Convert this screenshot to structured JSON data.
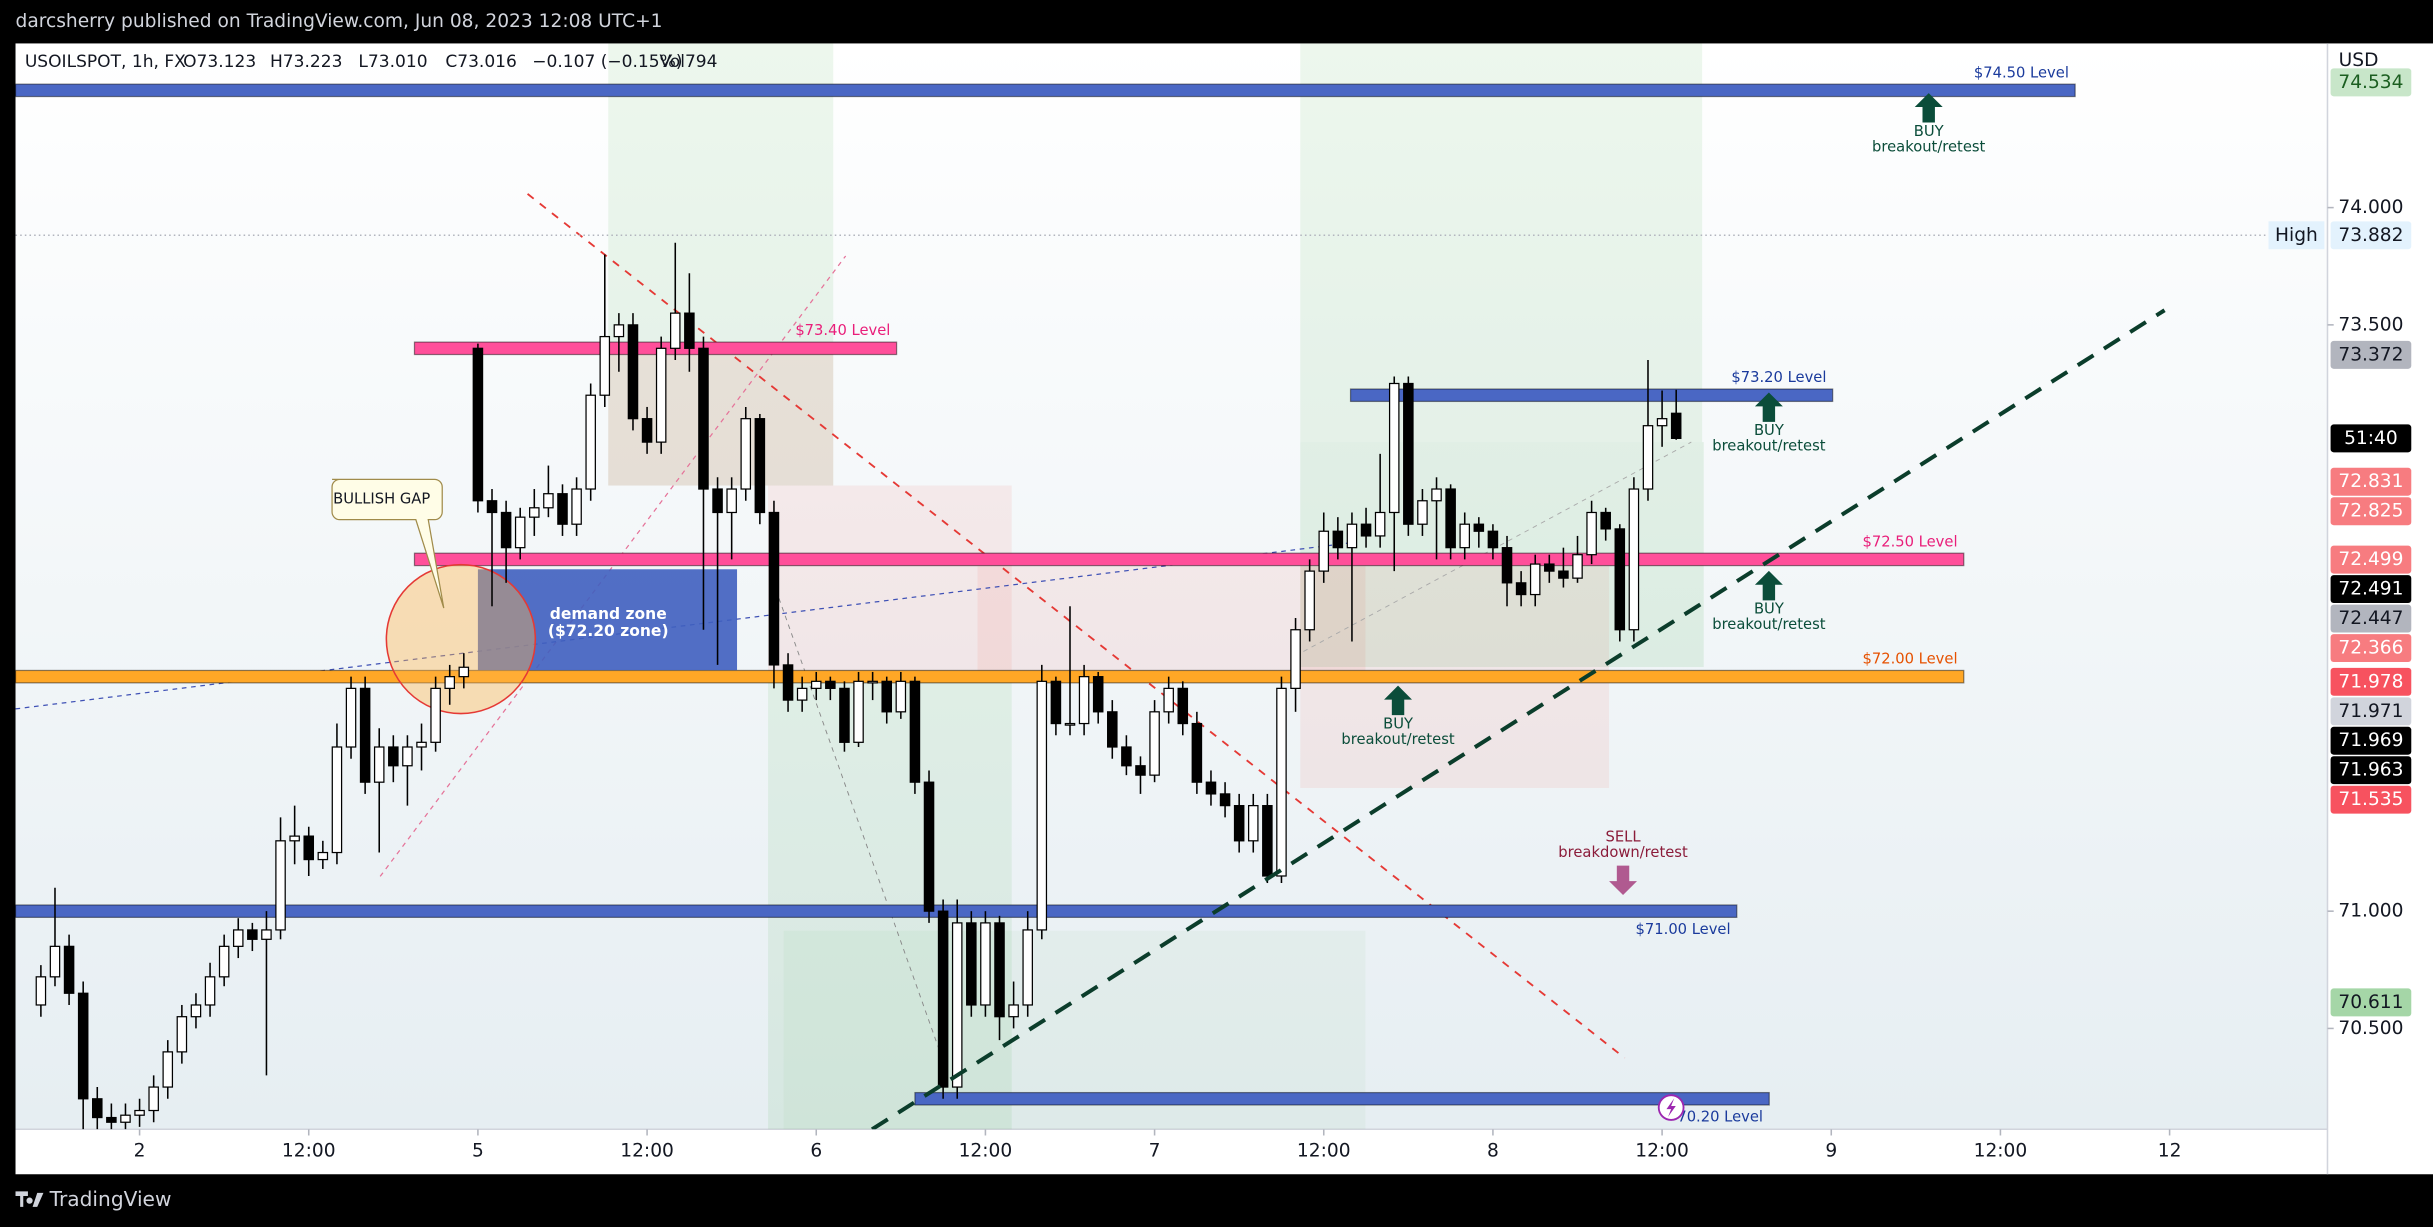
{
  "chart_data": {
    "type": "candlestick",
    "publisher": "darcsherry published on TradingView.com, Jun 08, 2023 12:08 UTC+1",
    "legend": [
      "USOILSPOT, 1h, FX",
      "O73.123",
      "H73.223",
      "L73.010",
      "C73.016",
      "−0.107 (−0.15%)",
      "Vol794"
    ],
    "currency": "USD",
    "brand": "TradingView",
    "countdown": "51:40",
    "up_color": "#ffffff",
    "down_color": "#000000",
    "grid": false,
    "xlim": [
      -8.8,
      155.2
    ],
    "ylim": [
      70.07,
      74.7
    ],
    "xticks": [
      {
        "value": 0,
        "label": "2"
      },
      {
        "value": 12,
        "label": "12:00"
      },
      {
        "value": 24,
        "label": "5"
      },
      {
        "value": 36,
        "label": "12:00"
      },
      {
        "value": 48,
        "label": "6"
      },
      {
        "value": 60,
        "label": "12:00"
      },
      {
        "value": 72,
        "label": "7"
      },
      {
        "value": 84,
        "label": "12:00"
      },
      {
        "value": 96,
        "label": "8"
      },
      {
        "value": 108,
        "label": "12:00"
      },
      {
        "value": 120,
        "label": "9"
      },
      {
        "value": 132,
        "label": "12:00"
      },
      {
        "value": 144,
        "label": "12"
      }
    ],
    "yticks": [
      {
        "value": 74,
        "label": "74.000"
      },
      {
        "value": 73.5,
        "label": "73.500"
      },
      {
        "value": 71,
        "label": "71.000"
      },
      {
        "value": 70.5,
        "label": "70.500"
      }
    ],
    "x": [
      -7,
      -6,
      -5,
      -4,
      -3,
      -2,
      -1,
      0,
      1,
      2,
      3,
      4,
      5,
      6,
      7,
      8,
      9,
      10,
      11,
      12,
      13,
      14,
      15,
      16,
      17,
      18,
      19,
      20,
      21,
      22,
      23,
      24,
      25,
      26,
      27,
      28,
      29,
      30,
      31,
      32,
      33,
      34,
      35,
      36,
      37,
      38,
      39,
      40,
      41,
      42,
      43,
      44,
      45,
      46,
      47,
      48,
      49,
      50,
      51,
      52,
      53,
      54,
      55,
      56,
      57,
      58,
      59,
      60,
      61,
      62,
      63,
      64,
      65,
      66,
      67,
      68,
      69,
      70,
      71,
      72,
      73,
      74,
      75,
      76,
      77,
      78,
      79,
      80,
      81,
      82,
      83,
      84,
      85,
      86,
      87,
      88,
      89,
      90,
      91,
      92,
      93,
      94,
      95,
      96,
      97,
      98,
      99,
      100,
      101,
      102,
      103,
      104,
      105,
      106,
      107,
      108,
      109
    ],
    "ohlc": [
      [
        70.6,
        70.77,
        70.55,
        70.72
      ],
      [
        70.72,
        71.1,
        70.68,
        70.85
      ],
      [
        70.85,
        70.9,
        70.6,
        70.65
      ],
      [
        70.65,
        70.7,
        70.07,
        70.2
      ],
      [
        70.2,
        70.25,
        70.07,
        70.12
      ],
      [
        70.12,
        70.18,
        70.07,
        70.1
      ],
      [
        70.1,
        70.18,
        70.07,
        70.13
      ],
      [
        70.13,
        70.2,
        70.08,
        70.15
      ],
      [
        70.15,
        70.3,
        70.1,
        70.25
      ],
      [
        70.25,
        70.45,
        70.2,
        70.4
      ],
      [
        70.4,
        70.6,
        70.35,
        70.55
      ],
      [
        70.55,
        70.65,
        70.5,
        70.6
      ],
      [
        70.6,
        70.78,
        70.55,
        70.72
      ],
      [
        70.72,
        70.9,
        70.68,
        70.85
      ],
      [
        70.85,
        70.97,
        70.8,
        70.92
      ],
      [
        70.92,
        70.95,
        70.83,
        70.88
      ],
      [
        70.88,
        71.0,
        70.3,
        70.92
      ],
      [
        70.92,
        71.4,
        70.88,
        71.3
      ],
      [
        71.3,
        71.45,
        71.2,
        71.32
      ],
      [
        71.32,
        71.36,
        71.15,
        71.22
      ],
      [
        71.22,
        71.3,
        71.18,
        71.25
      ],
      [
        71.25,
        71.8,
        71.2,
        71.7
      ],
      [
        71.7,
        72.0,
        71.65,
        71.95
      ],
      [
        71.95,
        72.0,
        71.5,
        71.55
      ],
      [
        71.55,
        71.78,
        71.25,
        71.7
      ],
      [
        71.7,
        71.75,
        71.55,
        71.62
      ],
      [
        71.62,
        71.75,
        71.45,
        71.7
      ],
      [
        71.7,
        71.8,
        71.6,
        71.72
      ],
      [
        71.72,
        72.0,
        71.68,
        71.95
      ],
      [
        71.95,
        72.05,
        71.88,
        72.0
      ],
      [
        72.0,
        72.1,
        71.95,
        72.04
      ],
      [
        73.4,
        73.42,
        72.7,
        72.75
      ],
      [
        72.75,
        72.8,
        72.3,
        72.7
      ],
      [
        72.7,
        72.75,
        72.4,
        72.55
      ],
      [
        72.55,
        72.72,
        72.5,
        72.68
      ],
      [
        72.68,
        72.8,
        72.6,
        72.72
      ],
      [
        72.72,
        72.9,
        72.68,
        72.78
      ],
      [
        72.78,
        72.82,
        72.6,
        72.65
      ],
      [
        72.65,
        72.85,
        72.6,
        72.8
      ],
      [
        72.8,
        73.25,
        72.75,
        73.2
      ],
      [
        73.2,
        73.8,
        73.15,
        73.45
      ],
      [
        73.45,
        73.55,
        73.3,
        73.5
      ],
      [
        73.5,
        73.55,
        73.05,
        73.1
      ],
      [
        73.1,
        73.15,
        72.95,
        73.0
      ],
      [
        73.0,
        73.45,
        72.95,
        73.4
      ],
      [
        73.4,
        73.85,
        73.35,
        73.55
      ],
      [
        73.55,
        73.72,
        73.3,
        73.4
      ],
      [
        73.4,
        73.45,
        72.2,
        72.8
      ],
      [
        72.8,
        72.85,
        72.05,
        72.7
      ],
      [
        72.7,
        72.85,
        72.5,
        72.8
      ],
      [
        72.8,
        73.15,
        72.75,
        73.1
      ],
      [
        73.1,
        73.12,
        72.65,
        72.7
      ],
      [
        72.7,
        72.75,
        71.95,
        72.05
      ],
      [
        72.05,
        72.1,
        71.85,
        71.9
      ],
      [
        71.9,
        72.0,
        71.85,
        71.95
      ],
      [
        71.95,
        72.02,
        71.9,
        71.98
      ],
      [
        71.98,
        72.0,
        71.9,
        71.95
      ],
      [
        71.95,
        71.98,
        71.68,
        71.72
      ],
      [
        71.72,
        72.02,
        71.7,
        71.98
      ],
      [
        71.98,
        72.02,
        71.9,
        71.98
      ],
      [
        71.98,
        72.0,
        71.8,
        71.85
      ],
      [
        71.85,
        72.02,
        71.82,
        71.98
      ],
      [
        71.98,
        72.0,
        71.5,
        71.55
      ],
      [
        71.55,
        71.6,
        70.95,
        71.0
      ],
      [
        71.0,
        71.05,
        70.2,
        70.25
      ],
      [
        70.25,
        71.05,
        70.2,
        70.95
      ],
      [
        70.95,
        71.0,
        70.55,
        70.6
      ],
      [
        70.6,
        71.0,
        70.55,
        70.95
      ],
      [
        70.95,
        70.98,
        70.45,
        70.55
      ],
      [
        70.55,
        70.7,
        70.5,
        70.6
      ],
      [
        70.6,
        71.0,
        70.55,
        70.92
      ],
      [
        70.92,
        72.05,
        70.88,
        71.98
      ],
      [
        71.98,
        72.0,
        71.75,
        71.8
      ],
      [
        71.8,
        72.3,
        71.75,
        71.8
      ],
      [
        71.8,
        72.05,
        71.75,
        72.0
      ],
      [
        72.0,
        72.02,
        71.8,
        71.85
      ],
      [
        71.85,
        71.9,
        71.65,
        71.7
      ],
      [
        71.7,
        71.75,
        71.58,
        71.62
      ],
      [
        71.62,
        71.66,
        71.5,
        71.58
      ],
      [
        71.58,
        71.9,
        71.55,
        71.85
      ],
      [
        71.85,
        72.0,
        71.8,
        71.95
      ],
      [
        71.95,
        71.98,
        71.75,
        71.8
      ],
      [
        71.8,
        71.85,
        71.5,
        71.55
      ],
      [
        71.55,
        71.6,
        71.45,
        71.5
      ],
      [
        71.5,
        71.55,
        71.4,
        71.45
      ],
      [
        71.45,
        71.5,
        71.25,
        71.3
      ],
      [
        71.3,
        71.5,
        71.25,
        71.45
      ],
      [
        71.45,
        71.5,
        71.12,
        71.15
      ],
      [
        71.15,
        72.0,
        71.12,
        71.95
      ],
      [
        71.95,
        72.25,
        71.85,
        72.2
      ],
      [
        72.2,
        72.5,
        72.15,
        72.45
      ],
      [
        72.45,
        72.7,
        72.4,
        72.62
      ],
      [
        72.62,
        72.68,
        72.5,
        72.55
      ],
      [
        72.55,
        72.7,
        72.15,
        72.65
      ],
      [
        72.65,
        72.72,
        72.55,
        72.6
      ],
      [
        72.6,
        72.95,
        72.55,
        72.7
      ],
      [
        72.7,
        73.28,
        72.45,
        73.25
      ],
      [
        73.25,
        73.28,
        72.6,
        72.65
      ],
      [
        72.65,
        72.8,
        72.6,
        72.75
      ],
      [
        72.75,
        72.85,
        72.5,
        72.8
      ],
      [
        72.8,
        72.82,
        72.5,
        72.55
      ],
      [
        72.55,
        72.7,
        72.5,
        72.65
      ],
      [
        72.65,
        72.68,
        72.55,
        72.62
      ],
      [
        72.62,
        72.65,
        72.5,
        72.55
      ],
      [
        72.55,
        72.6,
        72.3,
        72.4
      ],
      [
        72.4,
        72.45,
        72.3,
        72.35
      ],
      [
        72.35,
        72.52,
        72.3,
        72.48
      ],
      [
        72.48,
        72.52,
        72.4,
        72.45
      ],
      [
        72.45,
        72.55,
        72.38,
        72.42
      ],
      [
        72.42,
        72.6,
        72.4,
        72.52
      ],
      [
        72.52,
        72.75,
        72.48,
        72.7
      ],
      [
        72.7,
        72.72,
        72.58,
        72.63
      ],
      [
        72.63,
        72.65,
        72.15,
        72.2
      ],
      [
        72.2,
        72.85,
        72.15,
        72.8
      ],
      [
        72.8,
        73.35,
        72.75,
        73.07
      ],
      [
        73.07,
        73.22,
        72.98,
        73.1
      ],
      [
        73.123,
        73.223,
        73.01,
        73.016
      ]
    ],
    "levels": [
      {
        "label": "$74.50 Level",
        "price": 74.5,
        "start": -8.8,
        "end": 137.3,
        "color": "#4a67c4",
        "label_side": "above"
      },
      {
        "label": "$73.40 Level",
        "price": 73.4,
        "start": 19.5,
        "end": 53.7,
        "color": "#ff4f9a",
        "label_side": "above"
      },
      {
        "label": "$73.20 Level",
        "price": 73.2,
        "start": 85.9,
        "end": 120.1,
        "color": "#4a67c4",
        "label_side": "above"
      },
      {
        "label": "$72.50 Level",
        "price": 72.5,
        "start": 19.5,
        "end": 129.4,
        "color": "#ff4f9a",
        "label_side": "above"
      },
      {
        "label": "$72.00 Level",
        "price": 72.0,
        "start": -8.8,
        "end": 129.4,
        "color": "#ffa726",
        "label_side": "above"
      },
      {
        "label": "$71.00 Level",
        "price": 71.0,
        "start": -8.8,
        "end": 113.3,
        "color": "#4a67c4",
        "label_side": "below"
      },
      {
        "label": "70.20 Level",
        "price": 70.2,
        "start": 55.0,
        "end": 115.6,
        "color": "#4a67c4",
        "label_side": "below"
      }
    ],
    "annotations": [
      {
        "label": "BUY",
        "note": "breakout/retest",
        "direction": "up",
        "color": "#0b4d3a"
      },
      {
        "label": "BUY",
        "note": "breakout/retest",
        "direction": "up",
        "color": "#0b4d3a"
      },
      {
        "label": "BUY",
        "note": "breakout/retest",
        "direction": "up",
        "color": "#0b4d3a"
      },
      {
        "label": "BUY",
        "note": "breakout/retest",
        "direction": "up",
        "color": "#0b4d3a"
      },
      {
        "label": "SELL",
        "note": "breakdown/retest",
        "direction": "down",
        "color": "#8b1c3a"
      }
    ],
    "callout": "BULLISH GAP",
    "zone": {
      "title": "demand zone",
      "subtitle": "($72.20 zone)"
    },
    "price_tags": [
      {
        "value": 74.534,
        "bg": "#c8e6c9",
        "fg": "#1b5e20"
      },
      {
        "value": 73.882,
        "bg": "#e3f2fd",
        "fg": "#131722",
        "name": "High"
      },
      {
        "value": 73.372,
        "bg": "#b2b5be",
        "fg": "#131722"
      },
      {
        "value": 72.831,
        "bg": "#f77c80",
        "fg": "#ffffff"
      },
      {
        "value": 72.825,
        "bg": "#f77c80",
        "fg": "#ffffff"
      },
      {
        "value": 72.499,
        "bg": "#f77c80",
        "fg": "#ffffff"
      },
      {
        "value": 72.491,
        "bg": "#000000",
        "fg": "#ffffff"
      },
      {
        "value": 72.447,
        "bg": "#b2b5be",
        "fg": "#131722"
      },
      {
        "value": 72.366,
        "bg": "#f77c80",
        "fg": "#ffffff"
      },
      {
        "value": 71.978,
        "bg": "#f7525f",
        "fg": "#ffffff"
      },
      {
        "value": 71.971,
        "bg": "#d1d4dc",
        "fg": "#131722"
      },
      {
        "value": 71.969,
        "bg": "#000000",
        "fg": "#ffffff"
      },
      {
        "value": 71.963,
        "bg": "#000000",
        "fg": "#ffffff"
      },
      {
        "value": 71.535,
        "bg": "#f7525f",
        "fg": "#ffffff"
      },
      {
        "value": 70.611,
        "bg": "#a5d6a7",
        "fg": "#131722"
      }
    ]
  }
}
